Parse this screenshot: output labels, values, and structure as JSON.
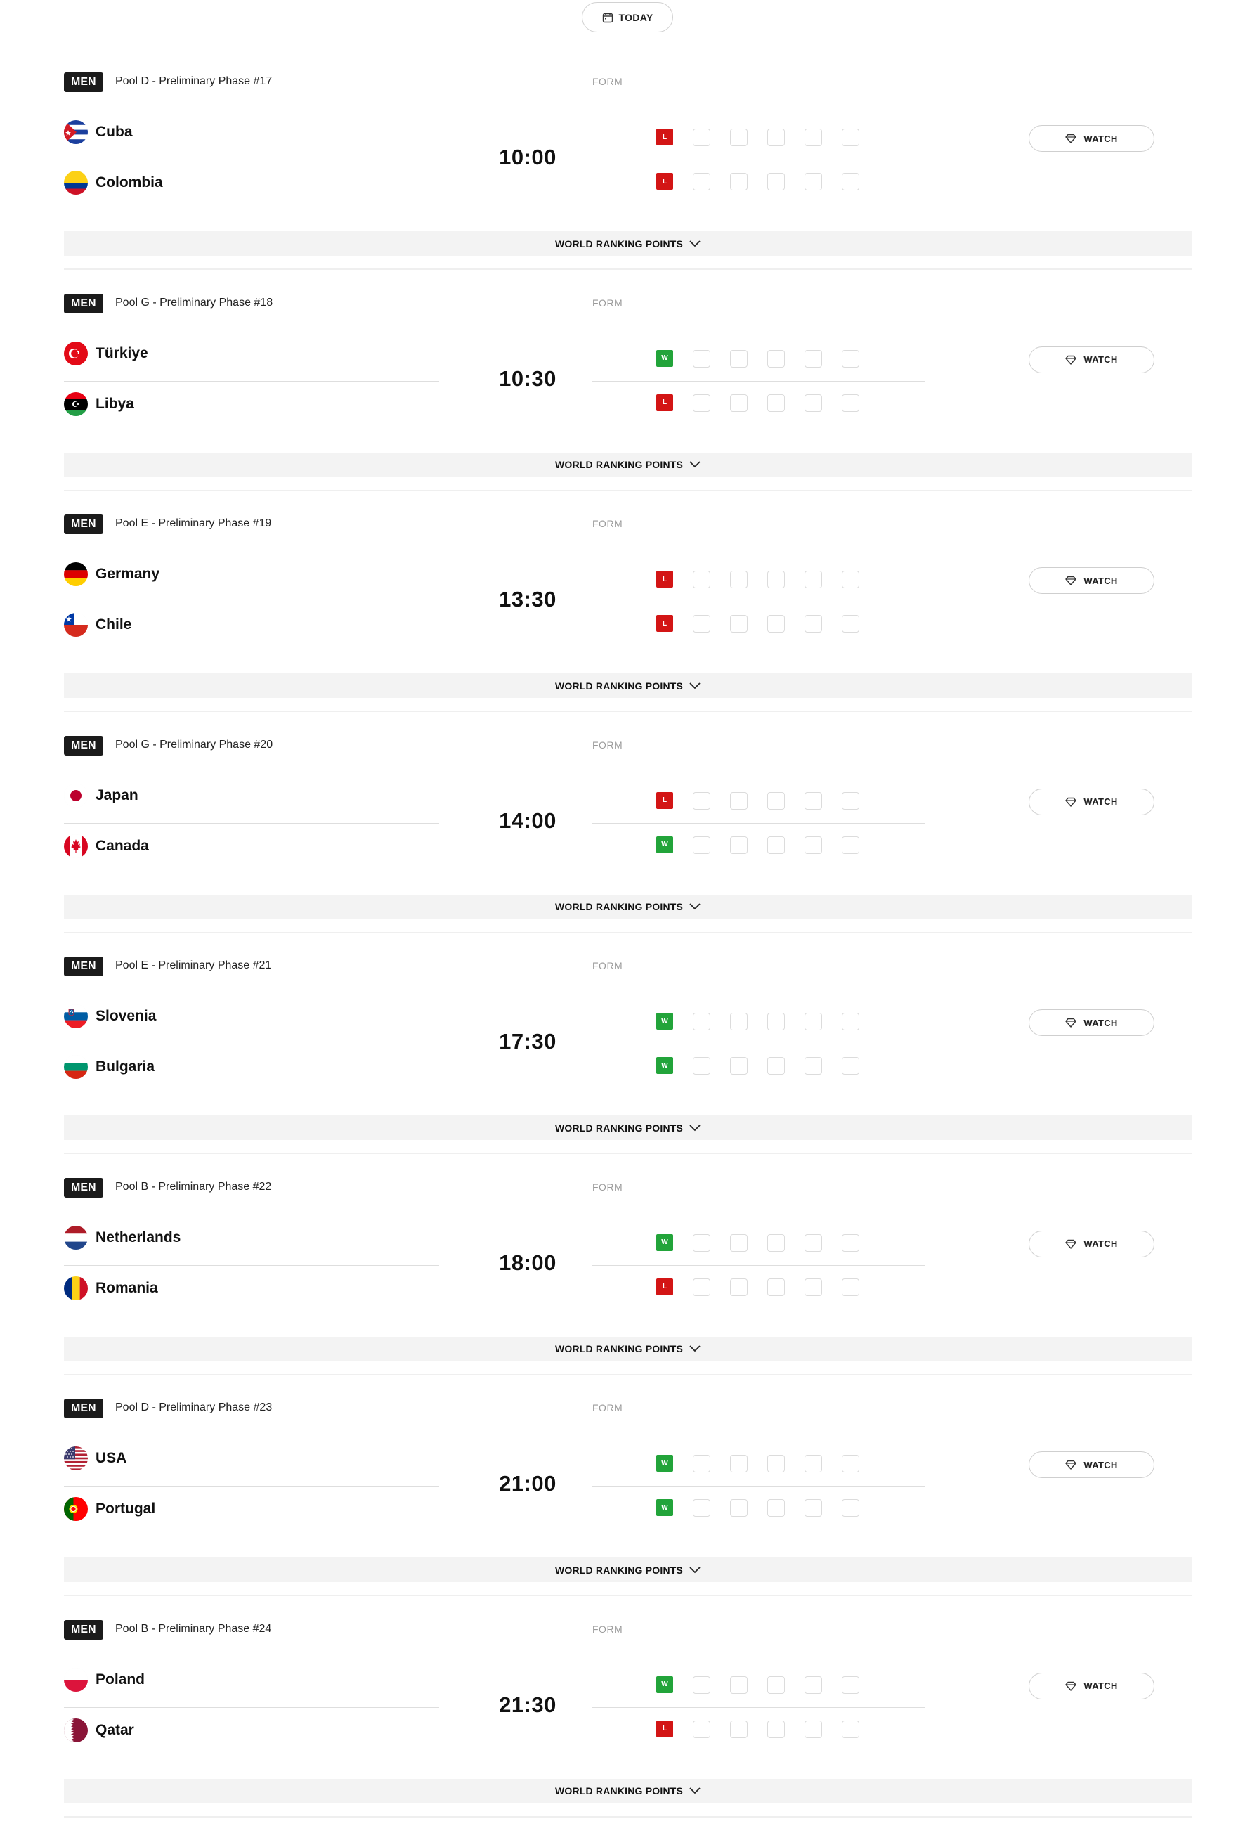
{
  "header": {
    "today_label": "TODAY"
  },
  "colors": {
    "loss": "#d31515",
    "win": "#22a43a",
    "badge_bg": "#1b1b1b"
  },
  "labels": {
    "form": "FORM",
    "watch": "WATCH",
    "world_ranking_points": "WORLD RANKING POINTS"
  },
  "matches": [
    {
      "gender": "MEN",
      "pool": "Pool D - Preliminary Phase #17",
      "time": "10:00",
      "home": {
        "name": "Cuba",
        "flag": "cuba-flag-icon",
        "form": [
          "L",
          "",
          "",
          "",
          "",
          ""
        ]
      },
      "away": {
        "name": "Colombia",
        "flag": "colombia-flag-icon",
        "form": [
          "L",
          "",
          "",
          "",
          "",
          ""
        ]
      }
    },
    {
      "gender": "MEN",
      "pool": "Pool G - Preliminary Phase #18",
      "time": "10:30",
      "home": {
        "name": "Türkiye",
        "flag": "turkiye-flag-icon",
        "form": [
          "W",
          "",
          "",
          "",
          "",
          ""
        ]
      },
      "away": {
        "name": "Libya",
        "flag": "libya-flag-icon",
        "form": [
          "L",
          "",
          "",
          "",
          "",
          ""
        ]
      }
    },
    {
      "gender": "MEN",
      "pool": "Pool E - Preliminary Phase #19",
      "time": "13:30",
      "home": {
        "name": "Germany",
        "flag": "germany-flag-icon",
        "form": [
          "L",
          "",
          "",
          "",
          "",
          ""
        ]
      },
      "away": {
        "name": "Chile",
        "flag": "chile-flag-icon",
        "form": [
          "L",
          "",
          "",
          "",
          "",
          ""
        ]
      }
    },
    {
      "gender": "MEN",
      "pool": "Pool G - Preliminary Phase #20",
      "time": "14:00",
      "home": {
        "name": "Japan",
        "flag": "japan-flag-icon",
        "form": [
          "L",
          "",
          "",
          "",
          "",
          ""
        ]
      },
      "away": {
        "name": "Canada",
        "flag": "canada-flag-icon",
        "form": [
          "W",
          "",
          "",
          "",
          "",
          ""
        ]
      }
    },
    {
      "gender": "MEN",
      "pool": "Pool E - Preliminary Phase #21",
      "time": "17:30",
      "home": {
        "name": "Slovenia",
        "flag": "slovenia-flag-icon",
        "form": [
          "W",
          "",
          "",
          "",
          "",
          ""
        ]
      },
      "away": {
        "name": "Bulgaria",
        "flag": "bulgaria-flag-icon",
        "form": [
          "W",
          "",
          "",
          "",
          "",
          ""
        ]
      }
    },
    {
      "gender": "MEN",
      "pool": "Pool B - Preliminary Phase #22",
      "time": "18:00",
      "home": {
        "name": "Netherlands",
        "flag": "netherlands-flag-icon",
        "form": [
          "W",
          "",
          "",
          "",
          "",
          ""
        ]
      },
      "away": {
        "name": "Romania",
        "flag": "romania-flag-icon",
        "form": [
          "L",
          "",
          "",
          "",
          "",
          ""
        ]
      }
    },
    {
      "gender": "MEN",
      "pool": "Pool D - Preliminary Phase #23",
      "time": "21:00",
      "home": {
        "name": "USA",
        "flag": "usa-flag-icon",
        "form": [
          "W",
          "",
          "",
          "",
          "",
          ""
        ]
      },
      "away": {
        "name": "Portugal",
        "flag": "portugal-flag-icon",
        "form": [
          "W",
          "",
          "",
          "",
          "",
          ""
        ]
      }
    },
    {
      "gender": "MEN",
      "pool": "Pool B - Preliminary Phase #24",
      "time": "21:30",
      "home": {
        "name": "Poland",
        "flag": "poland-flag-icon",
        "form": [
          "W",
          "",
          "",
          "",
          "",
          ""
        ]
      },
      "away": {
        "name": "Qatar",
        "flag": "qatar-flag-icon",
        "form": [
          "L",
          "",
          "",
          "",
          "",
          ""
        ]
      }
    }
  ]
}
